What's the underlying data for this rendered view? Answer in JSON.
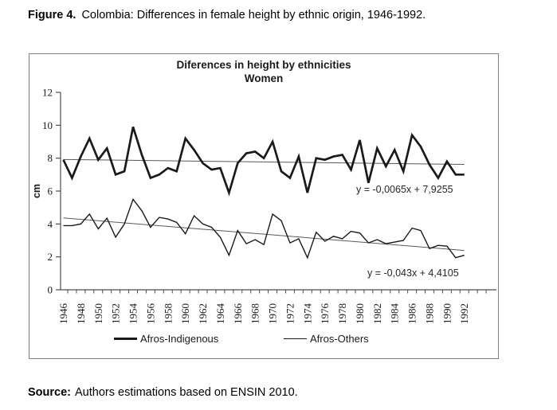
{
  "figure_caption": {
    "label": "Figure 4.",
    "text": "Colombia: Differences in female height by ethnic origin, 1946-1992."
  },
  "chart_ui": {
    "title_line1": "Diferences in height by ethnicities",
    "title_line2": "Women",
    "equation_top": "y = -0,0065x + 7,9255",
    "equation_bottom": "y = -0,043x + 4,4105",
    "legend": [
      {
        "label": "Afros-Indigenous",
        "style": "thick"
      },
      {
        "label": "Afros-Others",
        "style": "thin"
      }
    ]
  },
  "chart_data": {
    "type": "line",
    "title": "Diferences in height by ethnicities",
    "subtitle": "Women",
    "xlabel": "",
    "ylabel": "cm",
    "ylim": [
      0,
      12
    ],
    "ytick_step": 2,
    "grid": false,
    "legend_position": "bottom",
    "x_tick_label_rotation": 90,
    "x_labeled_every": 2,
    "x": [
      1946,
      1947,
      1948,
      1949,
      1950,
      1951,
      1952,
      1953,
      1954,
      1955,
      1956,
      1957,
      1958,
      1959,
      1960,
      1961,
      1962,
      1963,
      1964,
      1965,
      1966,
      1967,
      1968,
      1969,
      1970,
      1971,
      1972,
      1973,
      1974,
      1975,
      1976,
      1977,
      1978,
      1979,
      1980,
      1981,
      1982,
      1983,
      1984,
      1985,
      1986,
      1987,
      1988,
      1989,
      1990,
      1991,
      1992
    ],
    "series": [
      {
        "name": "Afros-Indigenous",
        "values": [
          7.9,
          6.8,
          8.1,
          9.2,
          7.9,
          8.6,
          7.0,
          7.2,
          9.9,
          8.2,
          6.8,
          7.0,
          7.4,
          7.2,
          9.2,
          8.5,
          7.7,
          7.3,
          7.4,
          5.9,
          7.7,
          8.3,
          8.4,
          8.0,
          9.0,
          7.2,
          6.8,
          8.1,
          5.9,
          8.0,
          7.9,
          8.1,
          8.2,
          7.3,
          9.1,
          6.5,
          8.6,
          7.5,
          8.5,
          7.2,
          9.4,
          8.7,
          7.6,
          6.8,
          7.8,
          7.0,
          7.0
        ]
      },
      {
        "name": "Afros-Others",
        "values": [
          3.9,
          3.9,
          4.0,
          4.6,
          3.7,
          4.35,
          3.2,
          4.0,
          5.5,
          4.8,
          3.8,
          4.4,
          4.3,
          4.1,
          3.4,
          4.5,
          4.0,
          3.8,
          3.2,
          2.1,
          3.6,
          2.8,
          3.05,
          2.75,
          4.6,
          4.2,
          2.85,
          3.1,
          1.95,
          3.5,
          2.95,
          3.25,
          3.1,
          3.55,
          3.45,
          2.85,
          3.05,
          2.8,
          2.9,
          3.0,
          3.75,
          3.6,
          2.5,
          2.7,
          2.65,
          1.95,
          2.1
        ]
      }
    ],
    "trendlines": [
      {
        "series": "Afros-Indigenous",
        "equation": "y = -0,0065x + 7,9255",
        "slope": -0.0065,
        "intercept": 7.9255
      },
      {
        "series": "Afros-Others",
        "equation": "y = -0,043x + 4,4105",
        "slope": -0.043,
        "intercept": 4.4105
      }
    ],
    "colors": {
      "series": "#1a1a1a",
      "trend": "#595959",
      "axis": "#4d4d4d",
      "chart_border": "#7f7f7f"
    }
  },
  "source": {
    "label": "Source:",
    "text": "Authors estimations based on ENSIN 2010."
  }
}
